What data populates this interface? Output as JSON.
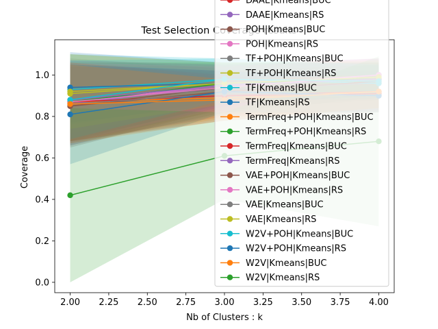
{
  "chart_data": {
    "type": "line",
    "title": "Test Selection Coverage results",
    "xlabel": "Nb of Clusters : k",
    "ylabel": "Coverage",
    "x": [
      2,
      3,
      4
    ],
    "xlim": [
      1.9,
      4.1
    ],
    "ylim": [
      -0.05,
      1.17
    ],
    "xticks": [
      "2.00",
      "2.25",
      "2.50",
      "2.75",
      "3.00",
      "3.25",
      "3.50",
      "3.75",
      "4.00"
    ],
    "yticks": [
      "0.0",
      "0.2",
      "0.4",
      "0.6",
      "0.8",
      "1.0"
    ],
    "grid": false,
    "legend_position": "upper right",
    "series": [
      {
        "name": "DAAE|Kmeans|BUC",
        "color": "#d62728",
        "values": [
          0.87,
          0.9,
          0.92
        ],
        "lower": [
          0.68,
          0.78,
          0.82
        ],
        "upper": [
          1.05,
          1.02,
          1.02
        ]
      },
      {
        "name": "DAAE|Kmeans|RS",
        "color": "#9467bd",
        "values": [
          0.86,
          0.95,
          1.0
        ],
        "lower": [
          0.66,
          0.85,
          0.92
        ],
        "upper": [
          1.06,
          1.05,
          1.08
        ]
      },
      {
        "name": "POH|Kmeans|BUC",
        "color": "#8c564b",
        "values": [
          0.85,
          0.94,
          1.0
        ],
        "lower": [
          0.65,
          0.84,
          0.92
        ],
        "upper": [
          1.05,
          1.04,
          1.08
        ]
      },
      {
        "name": "POH|Kmeans|RS",
        "color": "#e377c2",
        "values": [
          0.87,
          0.95,
          1.0
        ],
        "lower": [
          0.67,
          0.85,
          0.92
        ],
        "upper": [
          1.07,
          1.05,
          1.08
        ]
      },
      {
        "name": "TF+POH|Kmeans|BUC",
        "color": "#7f7f7f",
        "values": [
          0.88,
          0.93,
          0.96
        ],
        "lower": [
          0.68,
          0.83,
          0.88
        ],
        "upper": [
          1.08,
          1.03,
          1.04
        ]
      },
      {
        "name": "TF+POH|Kmeans|RS",
        "color": "#bcbd22",
        "values": [
          0.91,
          0.96,
          0.98
        ],
        "lower": [
          0.72,
          0.86,
          0.9
        ],
        "upper": [
          1.1,
          1.06,
          1.06
        ]
      },
      {
        "name": "TF|Kmeans|BUC",
        "color": "#17becf",
        "values": [
          0.93,
          0.98,
          0.96
        ],
        "lower": [
          0.76,
          0.88,
          0.88
        ],
        "upper": [
          1.1,
          1.08,
          1.04
        ]
      },
      {
        "name": "TF|Kmeans|RS",
        "color": "#1f77b4",
        "values": [
          0.94,
          0.96,
          0.98
        ],
        "lower": [
          0.77,
          0.86,
          0.9
        ],
        "upper": [
          1.11,
          1.06,
          1.06
        ]
      },
      {
        "name": "TermFreq+POH|Kmeans|BUC",
        "color": "#ff7f0e",
        "values": [
          0.87,
          0.89,
          0.92
        ],
        "lower": [
          0.68,
          0.79,
          0.84
        ],
        "upper": [
          1.06,
          0.99,
          1.0
        ]
      },
      {
        "name": "TermFreq+POH|Kmeans|RS",
        "color": "#2ca02c",
        "values": [
          0.87,
          0.96,
          0.98
        ],
        "lower": [
          0.68,
          0.86,
          0.9
        ],
        "upper": [
          1.06,
          1.06,
          1.06
        ]
      },
      {
        "name": "TermFreq|Kmeans|BUC",
        "color": "#d62728",
        "values": [
          0.87,
          0.9,
          0.91
        ],
        "lower": [
          0.68,
          0.8,
          0.83
        ],
        "upper": [
          1.06,
          1.0,
          0.99
        ]
      },
      {
        "name": "TermFreq|Kmeans|RS",
        "color": "#9467bd",
        "values": [
          0.88,
          0.95,
          0.98
        ],
        "lower": [
          0.69,
          0.85,
          0.9
        ],
        "upper": [
          1.07,
          1.05,
          1.06
        ]
      },
      {
        "name": "VAE+POH|Kmeans|BUC",
        "color": "#8c564b",
        "values": [
          0.85,
          0.92,
          0.97
        ],
        "lower": [
          0.66,
          0.82,
          0.89
        ],
        "upper": [
          1.04,
          1.02,
          1.05
        ]
      },
      {
        "name": "VAE+POH|Kmeans|RS",
        "color": "#e377c2",
        "values": [
          0.87,
          0.94,
          1.0
        ],
        "lower": [
          0.68,
          0.84,
          0.92
        ],
        "upper": [
          1.06,
          1.04,
          1.08
        ]
      },
      {
        "name": "VAE|Kmeans|BUC",
        "color": "#7f7f7f",
        "values": [
          0.86,
          0.91,
          0.9
        ],
        "lower": [
          0.67,
          0.81,
          0.82
        ],
        "upper": [
          1.05,
          1.01,
          0.98
        ]
      },
      {
        "name": "VAE|Kmeans|RS",
        "color": "#bcbd22",
        "values": [
          0.92,
          0.96,
          0.99
        ],
        "lower": [
          0.74,
          0.86,
          0.91
        ],
        "upper": [
          1.1,
          1.06,
          1.07
        ]
      },
      {
        "name": "W2V+POH|Kmeans|BUC",
        "color": "#17becf",
        "values": [
          0.88,
          0.98,
          0.97
        ],
        "lower": [
          0.69,
          0.88,
          0.89
        ],
        "upper": [
          1.07,
          1.08,
          1.05
        ]
      },
      {
        "name": "W2V+POH|Kmeans|RS",
        "color": "#1f77b4",
        "values": [
          0.81,
          0.92,
          0.9
        ],
        "lower": [
          0.57,
          0.82,
          0.82
        ],
        "upper": [
          1.05,
          1.02,
          0.98
        ]
      },
      {
        "name": "W2V|Kmeans|BUC",
        "color": "#ff7f0e",
        "values": [
          0.86,
          0.88,
          0.92
        ],
        "lower": [
          0.67,
          0.78,
          0.84
        ],
        "upper": [
          1.05,
          0.98,
          1.0
        ]
      },
      {
        "name": "W2V|Kmeans|RS",
        "color": "#2ca02c",
        "values": [
          0.42,
          0.61,
          0.68
        ],
        "lower": [
          0.0,
          0.4,
          0.27
        ],
        "upper": [
          0.84,
          0.82,
          1.09
        ]
      }
    ]
  }
}
